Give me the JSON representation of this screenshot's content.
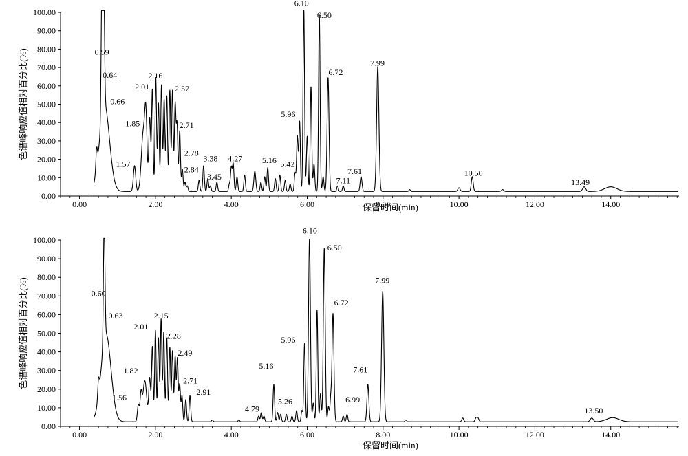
{
  "chart_data": [
    {
      "type": "line",
      "xlabel": "保留时间(min)",
      "ylabel": "色谱峰响应值相对百分比(%)",
      "xlim": [
        -0.5,
        15.8
      ],
      "ylim": [
        0,
        100
      ],
      "xticks": [
        "0.00",
        "2.00",
        "4.00",
        "6.00",
        "8.00",
        "10.00",
        "12.00",
        "14.00"
      ],
      "yticks": [
        "0.00",
        "10.00",
        "20.00",
        "30.00",
        "40.00",
        "50.00",
        "60.00",
        "70.00",
        "80.00",
        "90.00",
        "100.00"
      ],
      "grid": false,
      "baseline": 2.5,
      "peaks": [
        {
          "rt": 0.45,
          "height": 11,
          "width": 0.02
        },
        {
          "rt": 0.59,
          "height": 72,
          "width": 0.02
        },
        {
          "rt": 0.64,
          "height": 63,
          "width": 0.02
        },
        {
          "rt": 0.66,
          "height": 47,
          "width": 0.13
        },
        {
          "rt": 1.45,
          "height": 14,
          "width": 0.03
        },
        {
          "rt": 1.68,
          "height": 32,
          "width": 0.05
        },
        {
          "rt": 1.75,
          "height": 35,
          "width": 0.03
        },
        {
          "rt": 1.85,
          "height": 40,
          "width": 0.025
        },
        {
          "rt": 1.92,
          "height": 55,
          "width": 0.02
        },
        {
          "rt": 2.01,
          "height": 62,
          "width": 0.02
        },
        {
          "rt": 2.08,
          "height": 48,
          "width": 0.02
        },
        {
          "rt": 2.16,
          "height": 58,
          "width": 0.02
        },
        {
          "rt": 2.23,
          "height": 50,
          "width": 0.02
        },
        {
          "rt": 2.3,
          "height": 52,
          "width": 0.02
        },
        {
          "rt": 2.38,
          "height": 55,
          "width": 0.02
        },
        {
          "rt": 2.45,
          "height": 55,
          "width": 0.02
        },
        {
          "rt": 2.52,
          "height": 47,
          "width": 0.02
        },
        {
          "rt": 2.57,
          "height": 36,
          "width": 0.02
        },
        {
          "rt": 2.64,
          "height": 33,
          "width": 0.02
        },
        {
          "rt": 2.71,
          "height": 12,
          "width": 0.02
        },
        {
          "rt": 2.78,
          "height": 5,
          "width": 0.02
        },
        {
          "rt": 2.84,
          "height": 3,
          "width": 0.02
        },
        {
          "rt": 3.15,
          "height": 6,
          "width": 0.02
        },
        {
          "rt": 3.27,
          "height": 14,
          "width": 0.02
        },
        {
          "rt": 3.38,
          "height": 7,
          "width": 0.02
        },
        {
          "rt": 3.45,
          "height": 3,
          "width": 0.02
        },
        {
          "rt": 3.62,
          "height": 5,
          "width": 0.02
        },
        {
          "rt": 3.95,
          "height": 4,
          "width": 0.02
        },
        {
          "rt": 4.0,
          "height": 13,
          "width": 0.02
        },
        {
          "rt": 4.05,
          "height": 15,
          "width": 0.02
        },
        {
          "rt": 4.15,
          "height": 8,
          "width": 0.02
        },
        {
          "rt": 4.35,
          "height": 9,
          "width": 0.02
        },
        {
          "rt": 4.62,
          "height": 11,
          "width": 0.025
        },
        {
          "rt": 4.78,
          "height": 5,
          "width": 0.02
        },
        {
          "rt": 4.88,
          "height": 8,
          "width": 0.02
        },
        {
          "rt": 4.96,
          "height": 13,
          "width": 0.02
        },
        {
          "rt": 5.16,
          "height": 7,
          "width": 0.02
        },
        {
          "rt": 5.28,
          "height": 9,
          "width": 0.02
        },
        {
          "rt": 5.42,
          "height": 6,
          "width": 0.02
        },
        {
          "rt": 5.55,
          "height": 4,
          "width": 0.02
        },
        {
          "rt": 5.68,
          "height": 10,
          "width": 0.02
        },
        {
          "rt": 5.74,
          "height": 30,
          "width": 0.02
        },
        {
          "rt": 5.8,
          "height": 38,
          "width": 0.02
        },
        {
          "rt": 5.91,
          "height": 100,
          "width": 0.02
        },
        {
          "rt": 6.0,
          "height": 30,
          "width": 0.02
        },
        {
          "rt": 6.1,
          "height": 57,
          "width": 0.02
        },
        {
          "rt": 6.18,
          "height": 15,
          "width": 0.02
        },
        {
          "rt": 6.32,
          "height": 96,
          "width": 0.02
        },
        {
          "rt": 6.42,
          "height": 8,
          "width": 0.02
        },
        {
          "rt": 6.55,
          "height": 62,
          "width": 0.025
        },
        {
          "rt": 6.8,
          "height": 3,
          "width": 0.02
        },
        {
          "rt": 6.95,
          "height": 3,
          "width": 0.02
        },
        {
          "rt": 7.42,
          "height": 8,
          "width": 0.025
        },
        {
          "rt": 7.86,
          "height": 68,
          "width": 0.03
        },
        {
          "rt": 8.7,
          "height": 1,
          "width": 0.02
        },
        {
          "rt": 10.0,
          "height": 2,
          "width": 0.03
        },
        {
          "rt": 10.35,
          "height": 8,
          "width": 0.025
        },
        {
          "rt": 11.15,
          "height": 1,
          "width": 0.03
        },
        {
          "rt": 13.3,
          "height": 2.5,
          "width": 0.04
        },
        {
          "rt": 14.0,
          "height": 2.5,
          "width": 0.16
        }
      ],
      "annotations": [
        {
          "text": "0.59",
          "x": 0.59,
          "y": 77
        },
        {
          "text": "0.64",
          "x": 0.8,
          "y": 64.5
        },
        {
          "text": "0.66",
          "x": 1.0,
          "y": 50
        },
        {
          "text": "1.57",
          "x": 1.15,
          "y": 16
        },
        {
          "text": "1.85",
          "x": 1.4,
          "y": 38
        },
        {
          "text": "2.01",
          "x": 1.65,
          "y": 58
        },
        {
          "text": "2.16",
          "x": 2.0,
          "y": 64
        },
        {
          "text": "2.57",
          "x": 2.7,
          "y": 57
        },
        {
          "text": "2.71",
          "x": 2.82,
          "y": 37
        },
        {
          "text": "2.78",
          "x": 2.95,
          "y": 22
        },
        {
          "text": "2.84",
          "x": 2.95,
          "y": 13
        },
        {
          "text": "3.38",
          "x": 3.45,
          "y": 19
        },
        {
          "text": "3.45",
          "x": 3.55,
          "y": 9
        },
        {
          "text": "4.27",
          "x": 4.1,
          "y": 19
        },
        {
          "text": "5.16",
          "x": 5.0,
          "y": 18
        },
        {
          "text": "5.42",
          "x": 5.48,
          "y": 16
        },
        {
          "text": "5.96",
          "x": 5.5,
          "y": 43
        },
        {
          "text": "6.10",
          "x": 5.85,
          "y": 103.5
        },
        {
          "text": "6.50",
          "x": 6.45,
          "y": 97
        },
        {
          "text": "6.72",
          "x": 6.75,
          "y": 66
        },
        {
          "text": "7.11",
          "x": 6.95,
          "y": 7
        },
        {
          "text": "7.61",
          "x": 7.25,
          "y": 12
        },
        {
          "text": "7.99",
          "x": 7.85,
          "y": 71
        },
        {
          "text": "10.50",
          "x": 10.38,
          "y": 11
        },
        {
          "text": "13.49",
          "x": 13.2,
          "y": 6
        }
      ]
    },
    {
      "type": "line",
      "xlabel": "保留时间(min)",
      "ylabel": "色谱峰响应值相对百分比(%)",
      "xlim": [
        -0.5,
        15.8
      ],
      "ylim": [
        0,
        100
      ],
      "xticks": [
        "0.00",
        "2.00",
        "4.00",
        "6.00",
        "8.00",
        "10.00",
        "12.00",
        "14.00"
      ],
      "yticks": [
        "0.00",
        "10.00",
        "20.00",
        "30.00",
        "40.00",
        "50.00",
        "60.00",
        "70.00",
        "80.00",
        "90.00",
        "100.00"
      ],
      "grid": false,
      "baseline": 2.5,
      "peaks": [
        {
          "rt": 0.5,
          "height": 9,
          "width": 0.02
        },
        {
          "rt": 0.65,
          "height": 65,
          "width": 0.02
        },
        {
          "rt": 0.7,
          "height": 47,
          "width": 0.13
        },
        {
          "rt": 1.55,
          "height": 9,
          "width": 0.025
        },
        {
          "rt": 1.62,
          "height": 14,
          "width": 0.025
        },
        {
          "rt": 1.72,
          "height": 22,
          "width": 0.05
        },
        {
          "rt": 1.85,
          "height": 23,
          "width": 0.025
        },
        {
          "rt": 1.92,
          "height": 40,
          "width": 0.02
        },
        {
          "rt": 2.0,
          "height": 49,
          "width": 0.02
        },
        {
          "rt": 2.08,
          "height": 45,
          "width": 0.02
        },
        {
          "rt": 2.15,
          "height": 55,
          "width": 0.02
        },
        {
          "rt": 2.22,
          "height": 48,
          "width": 0.02
        },
        {
          "rt": 2.3,
          "height": 45,
          "width": 0.02
        },
        {
          "rt": 2.38,
          "height": 40,
          "width": 0.02
        },
        {
          "rt": 2.45,
          "height": 38,
          "width": 0.02
        },
        {
          "rt": 2.52,
          "height": 35,
          "width": 0.02
        },
        {
          "rt": 2.58,
          "height": 34,
          "width": 0.02
        },
        {
          "rt": 2.64,
          "height": 20,
          "width": 0.02
        },
        {
          "rt": 2.7,
          "height": 14,
          "width": 0.02
        },
        {
          "rt": 2.8,
          "height": 12,
          "width": 0.02
        },
        {
          "rt": 2.91,
          "height": 14,
          "width": 0.02
        },
        {
          "rt": 3.5,
          "height": 1,
          "width": 0.02
        },
        {
          "rt": 4.2,
          "height": 1,
          "width": 0.02
        },
        {
          "rt": 4.72,
          "height": 3,
          "width": 0.02
        },
        {
          "rt": 4.79,
          "height": 5,
          "width": 0.02
        },
        {
          "rt": 4.86,
          "height": 3,
          "width": 0.02
        },
        {
          "rt": 5.12,
          "height": 20,
          "width": 0.02
        },
        {
          "rt": 5.22,
          "height": 5,
          "width": 0.02
        },
        {
          "rt": 5.3,
          "height": 4,
          "width": 0.02
        },
        {
          "rt": 5.45,
          "height": 4,
          "width": 0.02
        },
        {
          "rt": 5.6,
          "height": 3,
          "width": 0.02
        },
        {
          "rt": 5.72,
          "height": 6,
          "width": 0.02
        },
        {
          "rt": 5.86,
          "height": 6,
          "width": 0.02
        },
        {
          "rt": 5.93,
          "height": 42,
          "width": 0.02
        },
        {
          "rt": 6.06,
          "height": 98,
          "width": 0.025
        },
        {
          "rt": 6.16,
          "height": 10,
          "width": 0.02
        },
        {
          "rt": 6.26,
          "height": 60,
          "width": 0.02
        },
        {
          "rt": 6.35,
          "height": 15,
          "width": 0.02
        },
        {
          "rt": 6.45,
          "height": 93,
          "width": 0.025
        },
        {
          "rt": 6.56,
          "height": 8,
          "width": 0.02
        },
        {
          "rt": 6.62,
          "height": 12,
          "width": 0.02
        },
        {
          "rt": 6.68,
          "height": 58,
          "width": 0.025
        },
        {
          "rt": 6.95,
          "height": 3,
          "width": 0.02
        },
        {
          "rt": 7.05,
          "height": 4,
          "width": 0.02
        },
        {
          "rt": 7.6,
          "height": 20,
          "width": 0.025
        },
        {
          "rt": 7.99,
          "height": 70,
          "width": 0.03
        },
        {
          "rt": 8.6,
          "height": 1,
          "width": 0.02
        },
        {
          "rt": 10.1,
          "height": 2,
          "width": 0.025
        },
        {
          "rt": 10.45,
          "height": 2,
          "width": 0.025
        },
        {
          "rt": 10.5,
          "height": 2,
          "width": 0.025
        },
        {
          "rt": 13.5,
          "height": 2,
          "width": 0.04
        },
        {
          "rt": 14.05,
          "height": 2.2,
          "width": 0.16
        }
      ],
      "annotations": [
        {
          "text": "0.60",
          "x": 0.5,
          "y": 70
        },
        {
          "text": "0.63",
          "x": 0.95,
          "y": 58
        },
        {
          "text": "1.56",
          "x": 1.05,
          "y": 14
        },
        {
          "text": "1.82",
          "x": 1.35,
          "y": 28.5
        },
        {
          "text": "2.01",
          "x": 1.62,
          "y": 52
        },
        {
          "text": "2.15",
          "x": 2.15,
          "y": 58
        },
        {
          "text": "2.28",
          "x": 2.48,
          "y": 47
        },
        {
          "text": "2.49",
          "x": 2.78,
          "y": 38
        },
        {
          "text": "2.71",
          "x": 2.92,
          "y": 23
        },
        {
          "text": "2.91",
          "x": 3.27,
          "y": 17
        },
        {
          "text": "4.79",
          "x": 4.55,
          "y": 8
        },
        {
          "text": "5.16",
          "x": 4.92,
          "y": 31
        },
        {
          "text": "5.26",
          "x": 5.42,
          "y": 12
        },
        {
          "text": "5.96",
          "x": 5.5,
          "y": 45
        },
        {
          "text": "6.10",
          "x": 6.07,
          "y": 103.5
        },
        {
          "text": "6.50",
          "x": 6.72,
          "y": 94.5
        },
        {
          "text": "6.72",
          "x": 6.9,
          "y": 65
        },
        {
          "text": "6.99",
          "x": 7.2,
          "y": 13
        },
        {
          "text": "7.61",
          "x": 7.4,
          "y": 29
        },
        {
          "text": "7.99",
          "x": 7.98,
          "y": 77
        },
        {
          "text": "13.50",
          "x": 13.55,
          "y": 7
        }
      ]
    }
  ]
}
